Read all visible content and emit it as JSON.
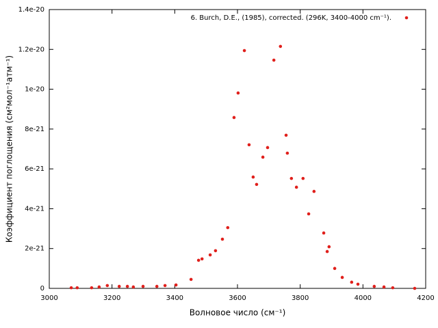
{
  "chart_data": {
    "type": "scatter",
    "x_label": "Волновое число (см⁻¹)",
    "y_label": "Коэффициент поглощения (см²мол⁻¹атм⁻¹)",
    "xlim": [
      3000,
      4200
    ],
    "ylim": [
      0,
      1.4e-20
    ],
    "xticks": [
      3000,
      3200,
      3400,
      3600,
      3800,
      4000,
      4200
    ],
    "yticks": [
      0,
      {
        "value": 2e-21,
        "label": "2e-21"
      },
      {
        "value": 4e-21,
        "label": "4e-21"
      },
      {
        "value": 6e-21,
        "label": "6e-21"
      },
      {
        "value": 8e-21,
        "label": "8e-21"
      },
      {
        "value": 1e-20,
        "label": "1e-20"
      },
      {
        "value": 1.2e-20,
        "label": "1.2e-20"
      },
      {
        "value": 1.4e-20,
        "label": "1.4e-20"
      }
    ],
    "legend_position": "top-right",
    "series": [
      {
        "name": "6. Burch, D.E., (1985), corrected. (296K, 3400-4000 cm⁻¹).",
        "color": "#e0201c",
        "x": [
          3070,
          3089,
          3135,
          3159,
          3185,
          3223,
          3249,
          3268,
          3299,
          3343,
          3369,
          3404,
          3452,
          3476,
          3487,
          3513,
          3530,
          3552,
          3569,
          3589,
          3602,
          3622,
          3637,
          3650,
          3661,
          3681,
          3696,
          3716,
          3737,
          3755,
          3759,
          3772,
          3788,
          3809,
          3827,
          3844,
          3875,
          3886,
          3892,
          3910,
          3934,
          3964,
          3984,
          4036,
          4067,
          4095,
          4165
        ],
        "values": [
          3e-23,
          3e-23,
          3e-23,
          7e-23,
          1.4e-22,
          1e-22,
          1e-22,
          7e-23,
          1e-22,
          1e-22,
          1.4e-22,
          1.7e-22,
          4.5e-22,
          1.41e-21,
          1.48e-21,
          1.68e-21,
          1.89e-21,
          2.47e-21,
          3.05e-21,
          8.58e-21,
          9.81e-21,
          1.194e-20,
          7.21e-21,
          5.59e-21,
          5.22e-21,
          6.59e-21,
          7.07e-21,
          1.146e-20,
          1.215e-20,
          7.69e-21,
          6.79e-21,
          5.52e-21,
          5.08e-21,
          5.52e-21,
          3.74e-21,
          4.87e-21,
          2.78e-21,
          1.85e-21,
          2.09e-21,
          1e-21,
          5.5e-22,
          3.1e-22,
          2.1e-22,
          1e-22,
          7e-23,
          3e-23,
          0
        ]
      }
    ]
  }
}
